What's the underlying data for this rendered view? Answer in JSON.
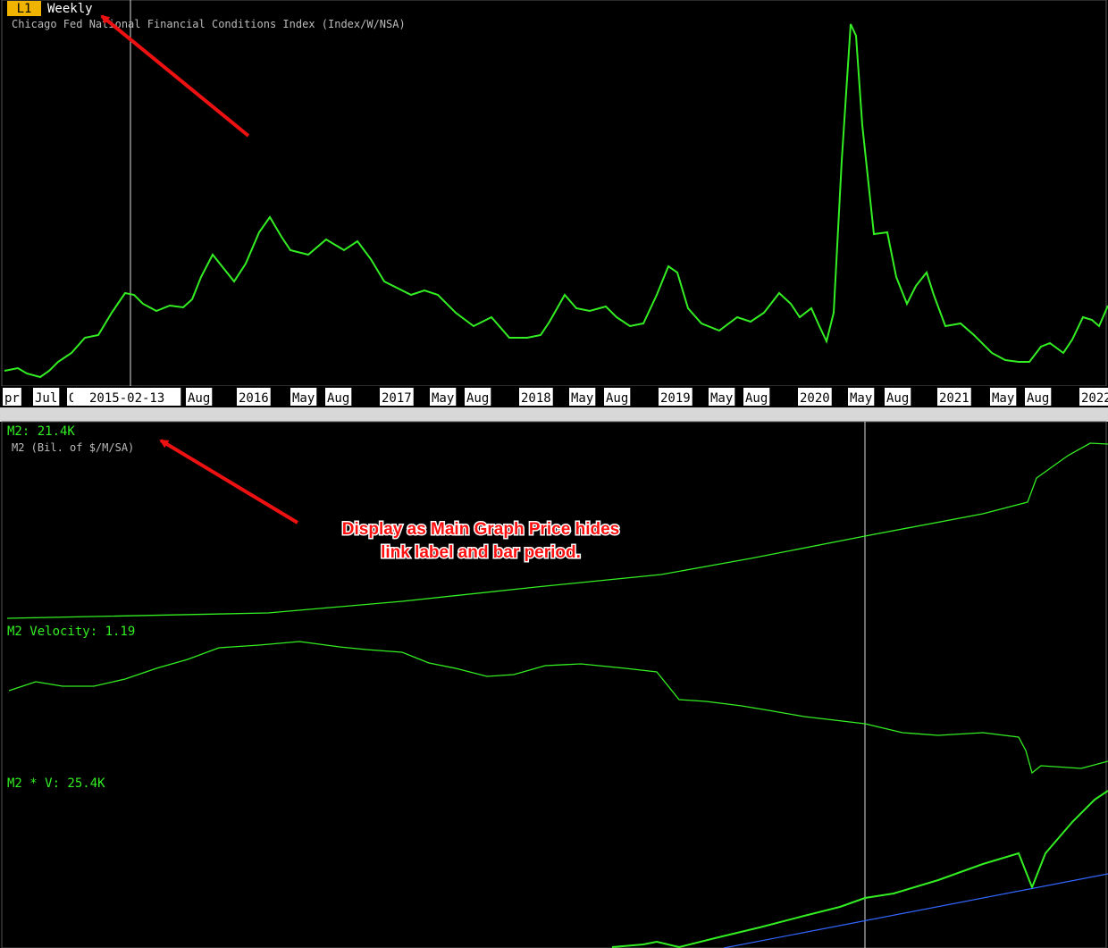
{
  "top_panel": {
    "badge": "L1",
    "period": "Weekly",
    "subtitle": "Chicago Fed National Financial Conditions Index (Index/W/NSA)",
    "axis_labels": [
      "pr",
      "Jul",
      "O",
      "2015-02-13",
      "Aug",
      "2016",
      "May",
      "Aug",
      "2017",
      "May",
      "Aug",
      "2018",
      "May",
      "Aug",
      "2019",
      "May",
      "Aug",
      "2020",
      "May",
      "Aug",
      "2021",
      "May",
      "Aug",
      "2022"
    ]
  },
  "bottom_panel": {
    "m2_label": "M2: 21.4K",
    "m2_subtitle": "M2 (Bil. of $/M/SA)",
    "velocity_label": "M2 Velocity: 1.19",
    "product_label": "M2 * V: 25.4K"
  },
  "annotation": {
    "lines": [
      "Display as Main Graph Price hides",
      "link label and bar period."
    ]
  }
}
